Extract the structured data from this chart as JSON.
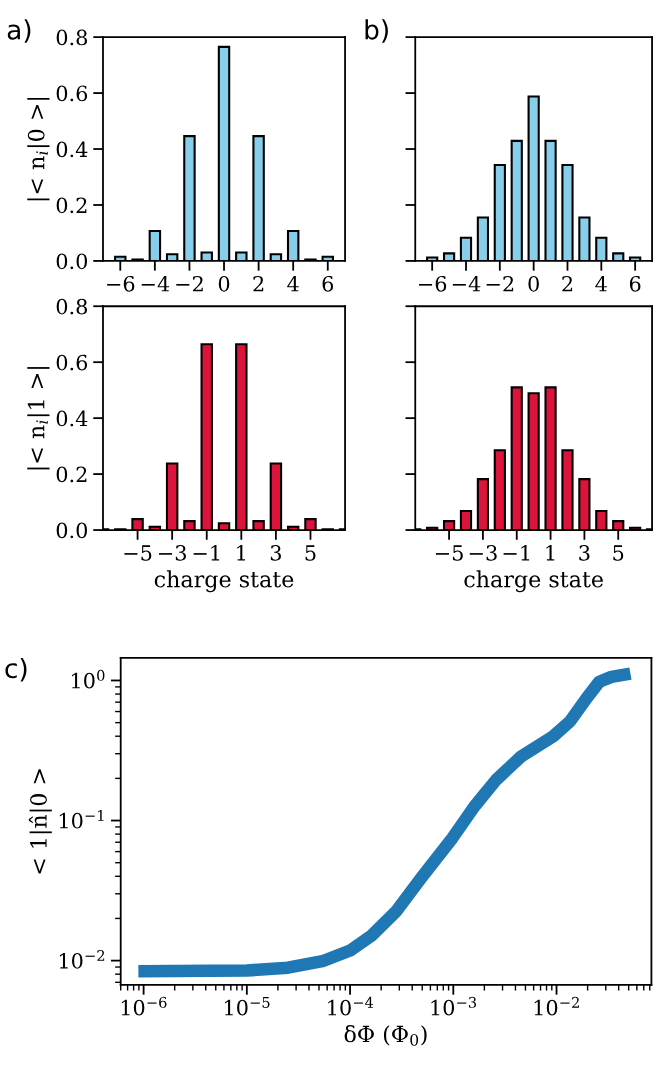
{
  "chart_data": [
    {
      "type": "bar",
      "title": "a)",
      "ylabel": "|< n$_{i}$|0 >|",
      "x": [
        -6,
        -5,
        -4,
        -3,
        -2,
        -1,
        0,
        1,
        2,
        3,
        4,
        5,
        6
      ],
      "series": [
        {
          "color": "#87ceeb",
          "values": [
            0.015,
            0.005,
            0.107,
            0.024,
            0.446,
            0.03,
            0.765,
            0.03,
            0.446,
            0.024,
            0.107,
            0.005,
            0.015
          ]
        }
      ],
      "xlim": [
        -7.0,
        7.0
      ],
      "xticks": [
        -6,
        -4,
        -2,
        0,
        2,
        4,
        6
      ],
      "ylim": [
        0,
        0.8
      ],
      "yticks": [
        {
          "value": 0,
          "label": "0.0"
        },
        {
          "value": 0.2,
          "label": "0.2"
        },
        {
          "value": 0.4,
          "label": "0.4"
        },
        {
          "value": 0.6,
          "label": "0.6"
        },
        {
          "value": 0.8,
          "label": "0.8"
        }
      ],
      "grid": false,
      "legend": false
    },
    {
      "type": "bar",
      "title": "b)",
      "x": [
        -6,
        -5,
        -4,
        -3,
        -2,
        -1,
        0,
        1,
        2,
        3,
        4,
        5,
        6
      ],
      "series": [
        {
          "color": "#87ceeb",
          "values": [
            0.012,
            0.027,
            0.083,
            0.155,
            0.343,
            0.429,
            0.588,
            0.429,
            0.343,
            0.155,
            0.083,
            0.027,
            0.012
          ]
        }
      ],
      "xlim": [
        -7.0,
        7.0
      ],
      "xticks": [
        -6,
        -4,
        -2,
        0,
        2,
        4,
        6
      ],
      "ylim": [
        0,
        0.8
      ],
      "yticks": [
        0.0,
        0.2,
        0.4,
        0.6,
        0.8
      ],
      "tick_labels": "x",
      "grid": false,
      "legend": false
    },
    {
      "type": "bar",
      "ylabel": "|< n$_{i}$|1 >|",
      "xlabel": "charge state",
      "x": [
        -7,
        -6,
        -5,
        -4,
        -3,
        -2,
        -1,
        0,
        1,
        2,
        3,
        4,
        5,
        6,
        7
      ],
      "series": [
        {
          "color": "#dc143c",
          "values": [
            0.003,
            0.003,
            0.039,
            0.012,
            0.238,
            0.032,
            0.664,
            0.024,
            0.664,
            0.032,
            0.238,
            0.012,
            0.039,
            0.003,
            0.003
          ]
        }
      ],
      "xlim": [
        -7.0,
        7.0
      ],
      "xticks": [
        -5,
        -3,
        -1,
        1,
        3,
        5
      ],
      "ylim": [
        0,
        0.8
      ],
      "yticks": [
        {
          "value": 0,
          "label": "0.0"
        },
        {
          "value": 0.2,
          "label": "0.2"
        },
        {
          "value": 0.4,
          "label": "0.4"
        },
        {
          "value": 0.6,
          "label": "0.6"
        },
        {
          "value": 0.8,
          "label": "0.8"
        }
      ],
      "grid": false,
      "legend": false
    },
    {
      "type": "bar",
      "xlabel": "charge state",
      "x": [
        -7,
        -6,
        -5,
        -4,
        -3,
        -2,
        -1,
        0,
        1,
        2,
        3,
        4,
        5,
        6,
        7
      ],
      "series": [
        {
          "color": "#dc143c",
          "values": [
            0.003,
            0.008,
            0.032,
            0.068,
            0.182,
            0.285,
            0.51,
            0.489,
            0.51,
            0.285,
            0.182,
            0.068,
            0.032,
            0.008,
            0.003
          ]
        }
      ],
      "xlim": [
        -7.0,
        7.0
      ],
      "xticks": [
        -5,
        -3,
        -1,
        1,
        3,
        5
      ],
      "ylim": [
        0,
        0.8
      ],
      "yticks": [
        0.0,
        0.2,
        0.4,
        0.6,
        0.8
      ],
      "tick_labels": "x",
      "grid": false,
      "legend": false
    },
    {
      "type": "line",
      "title": "c)",
      "xlabel": "δΦ (Φ$_{0}$)",
      "ylabel": "< 1|n̂|0 >",
      "log": "xy",
      "marker": "none",
      "line_style": "solid",
      "x": [
        8.9e-07,
        1e-05,
        2.5e-05,
        5.4e-05,
        0.0001,
        0.00016,
        0.00028,
        0.00049,
        0.00098,
        0.0016,
        0.0026,
        0.0045,
        0.0093,
        0.0135,
        0.0195,
        0.026,
        0.034,
        0.052
      ],
      "series": [
        {
          "color": "#1f77b4",
          "values": [
            0.0084,
            0.0085,
            0.0089,
            0.0099,
            0.0118,
            0.015,
            0.0225,
            0.039,
            0.075,
            0.126,
            0.195,
            0.285,
            0.4,
            0.51,
            0.745,
            0.98,
            1.06,
            1.12
          ]
        }
      ],
      "xlim": [
        6e-07,
        0.083
      ],
      "ylim": [
        0.0067,
        1.45
      ],
      "xticks": [
        {
          "value": 1e-06,
          "label": "10$^{−6}$"
        },
        {
          "value": 1e-05,
          "label": "10$^{−5}$"
        },
        {
          "value": 0.0001,
          "label": "10$^{−4}$"
        },
        {
          "value": 0.001,
          "label": "10$^{−3}$"
        },
        {
          "value": 0.01,
          "label": "10$^{−2}$"
        }
      ],
      "yticks": [
        {
          "value": 0.01,
          "label": "10$^{−2}$"
        },
        {
          "value": 0.1,
          "label": "10$^{−1}$"
        },
        {
          "value": 1,
          "label": "10$^{0}$"
        }
      ],
      "grid": false,
      "legend": false
    }
  ]
}
